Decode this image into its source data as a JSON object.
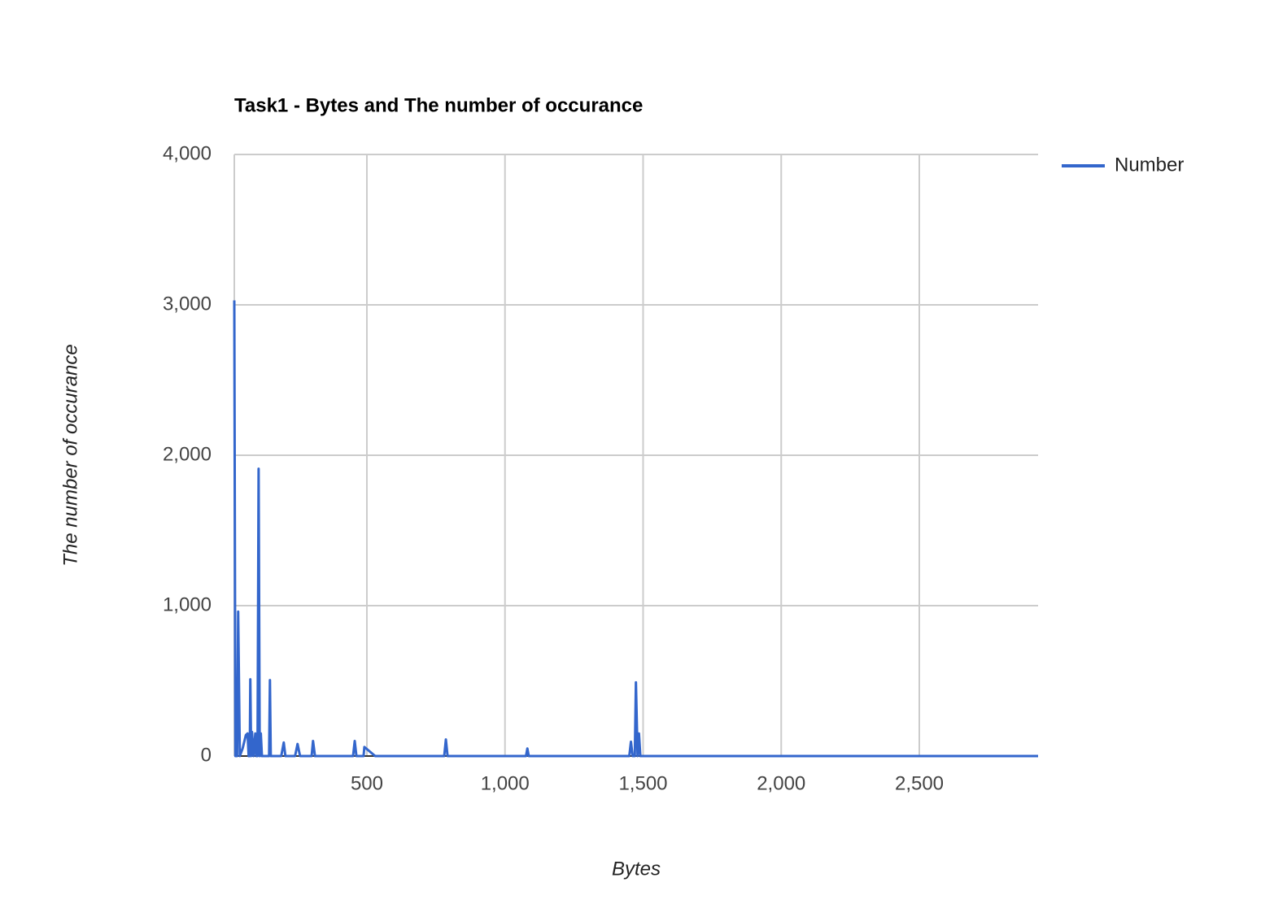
{
  "chart_data": {
    "type": "line",
    "title": "Task1 - Bytes and The number of occurance",
    "x_label": "Bytes",
    "y_label": "The number of occurance",
    "x": [
      20,
      24,
      30,
      34,
      40,
      50,
      62,
      68,
      72,
      76,
      78,
      81,
      84,
      90,
      96,
      100,
      104,
      108,
      112,
      116,
      120,
      146,
      149,
      152,
      190,
      199,
      205,
      240,
      249,
      258,
      300,
      305,
      312,
      450,
      456,
      462,
      488,
      491,
      530,
      780,
      786,
      792,
      1076,
      1081,
      1086,
      1450,
      1456,
      1462,
      1470,
      1474,
      1480,
      1485,
      1490,
      2930
    ],
    "series": [
      {
        "name": "Number",
        "color": "#3366cc",
        "values": [
          3030,
          0,
          0,
          960,
          0,
          50,
          140,
          150,
          0,
          0,
          510,
          0,
          160,
          0,
          150,
          0,
          0,
          1910,
          0,
          150,
          0,
          0,
          505,
          0,
          0,
          90,
          0,
          0,
          80,
          0,
          0,
          100,
          0,
          0,
          100,
          0,
          0,
          60,
          0,
          0,
          110,
          0,
          0,
          50,
          0,
          0,
          95,
          0,
          0,
          490,
          0,
          150,
          0,
          0
        ]
      }
    ],
    "xlim": [
      20,
      2930
    ],
    "xticks": [
      500,
      {
        "value": 1000,
        "label": "1,000"
      },
      {
        "value": 1500,
        "label": "1,500"
      },
      {
        "value": 2000,
        "label": "2,000"
      },
      {
        "value": 2500,
        "label": "2,500"
      }
    ],
    "ylim": [
      0,
      4000
    ],
    "yticks": [
      0,
      {
        "value": 1000,
        "label": "1,000"
      },
      {
        "value": 2000,
        "label": "2,000"
      },
      {
        "value": 3000,
        "label": "3,000"
      },
      {
        "value": 4000,
        "label": "4,000"
      }
    ],
    "grid": true,
    "legend": "right"
  }
}
